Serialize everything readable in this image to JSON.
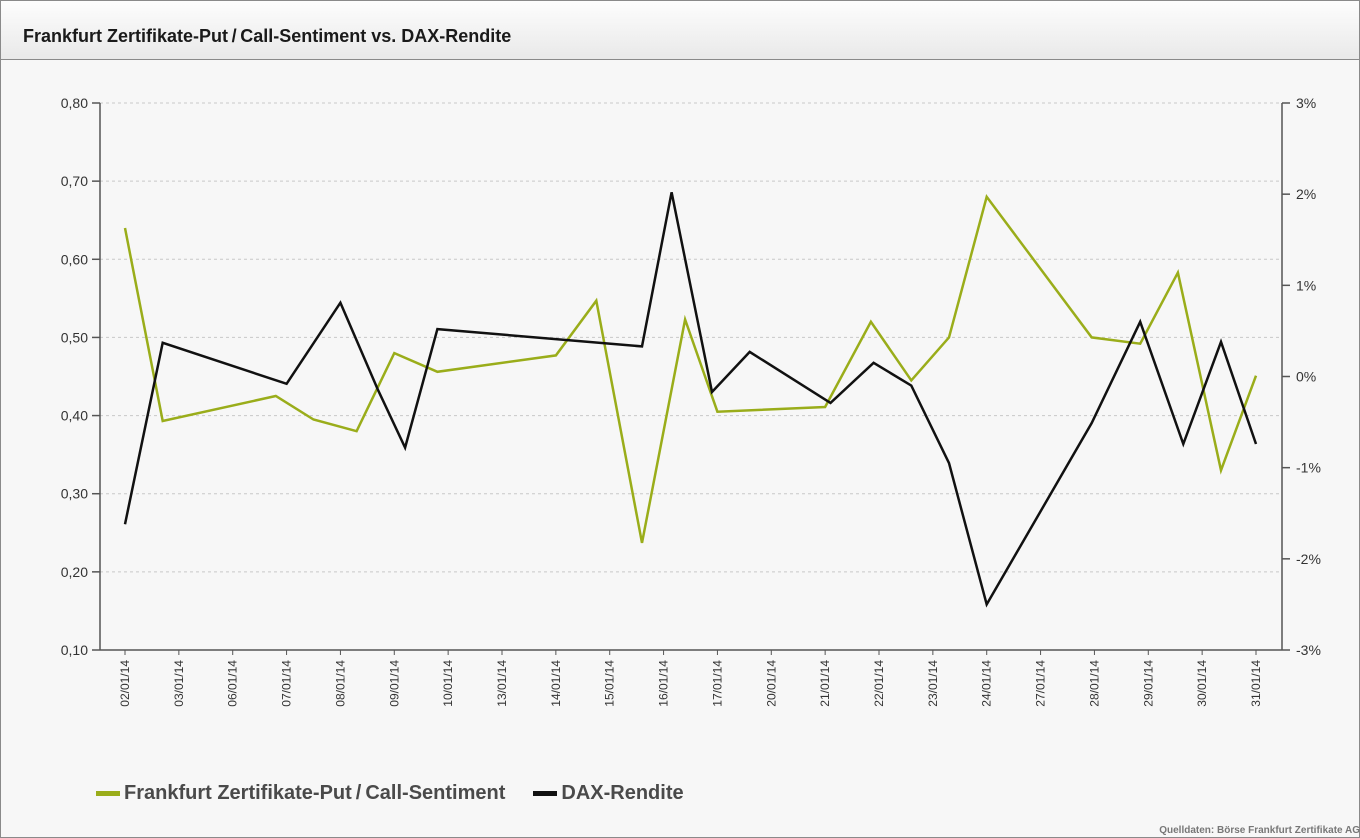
{
  "header": {
    "title": "Frankfurt Zertifikate-Put / Call-Sentiment vs. DAX-Rendite"
  },
  "source": "Quelldaten: Börse Frankfurt Zertifikate AG",
  "chart_data": {
    "type": "line",
    "title": "Frankfurt Zertifikate-Put / Call-Sentiment vs. DAX-Rendite",
    "categories": [
      "02/01/14",
      "03/01/14",
      "06/01/14",
      "07/01/14",
      "08/01/14",
      "09/01/14",
      "10/01/14",
      "13/01/14",
      "14/01/14",
      "15/01/14",
      "16/01/14",
      "17/01/14",
      "20/01/14",
      "21/01/14",
      "22/01/14",
      "23/01/14",
      "24/01/14",
      "27/01/14",
      "28/01/14",
      "29/01/14",
      "30/01/14",
      "31/01/14"
    ],
    "left_axis": {
      "ylim": [
        0.1,
        0.8
      ],
      "ticks": [
        "0,10",
        "0,20",
        "0,30",
        "0,40",
        "0,50",
        "0,60",
        "0,70",
        "0,80"
      ],
      "values": [
        0.1,
        0.2,
        0.3,
        0.4,
        0.5,
        0.6,
        0.7,
        0.8
      ]
    },
    "right_axis": {
      "ylim": [
        -3,
        3
      ],
      "ticks": [
        "-3%",
        "-2%",
        "-1%",
        "0%",
        "1%",
        "2%",
        "3%"
      ],
      "values": [
        -3,
        -2,
        -1,
        0,
        1,
        2,
        3
      ]
    },
    "grid": true,
    "legend": "bottom-left",
    "series": [
      {
        "name": "Frankfurt Zertifikate-Put / Call-Sentiment",
        "axis": "left",
        "color": "#9aad1a",
        "points": [
          [
            0,
            0.64
          ],
          [
            0.7,
            0.393
          ],
          [
            2.8,
            0.425
          ],
          [
            3.5,
            0.395
          ],
          [
            4.3,
            0.38
          ],
          [
            5,
            0.48
          ],
          [
            5.8,
            0.456
          ],
          [
            8,
            0.477
          ],
          [
            8.75,
            0.547
          ],
          [
            9.6,
            0.237
          ],
          [
            10.4,
            0.523
          ],
          [
            11,
            0.405
          ],
          [
            13,
            0.411
          ],
          [
            13.85,
            0.52
          ],
          [
            14.6,
            0.445
          ],
          [
            15.3,
            0.5
          ],
          [
            16,
            0.68
          ],
          [
            17.95,
            0.5
          ],
          [
            18.85,
            0.492
          ],
          [
            19.55,
            0.583
          ],
          [
            20.35,
            0.33
          ],
          [
            21,
            0.451
          ]
        ]
      },
      {
        "name": "DAX-Rendite",
        "axis": "right",
        "color": "#111111",
        "points": [
          [
            0,
            -1.62
          ],
          [
            0.7,
            0.37
          ],
          [
            3,
            -0.08
          ],
          [
            4,
            0.81
          ],
          [
            4.7,
            -0.15
          ],
          [
            5.2,
            -0.78
          ],
          [
            5.8,
            0.52
          ],
          [
            9.6,
            0.33
          ],
          [
            10.15,
            2.02
          ],
          [
            10.9,
            -0.17
          ],
          [
            11.6,
            0.27
          ],
          [
            13.1,
            -0.29
          ],
          [
            13.9,
            0.15
          ],
          [
            14.6,
            -0.1
          ],
          [
            15.3,
            -0.95
          ],
          [
            16,
            -2.5
          ],
          [
            17.95,
            -0.51
          ],
          [
            18.85,
            0.6
          ],
          [
            19.65,
            -0.74
          ],
          [
            20.35,
            0.38
          ],
          [
            21,
            -0.74
          ]
        ]
      }
    ]
  }
}
